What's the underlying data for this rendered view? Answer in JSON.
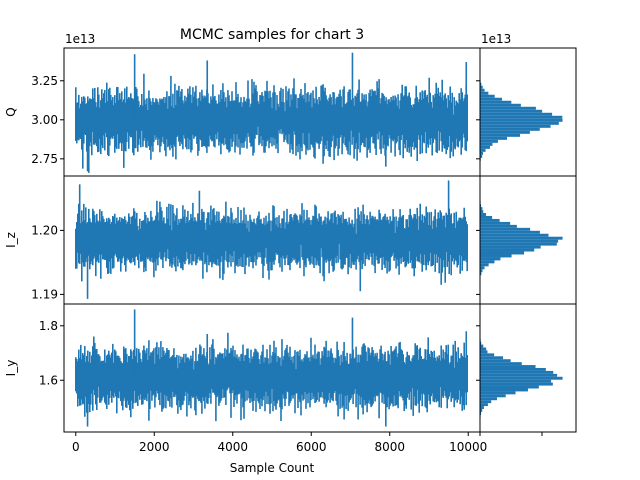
{
  "chart_data": {
    "type": "trace+histogram",
    "title": "MCMC samples for chart 3",
    "xlabel": "Sample Count",
    "x_ticks": [
      0,
      2000,
      4000,
      6000,
      8000,
      10000
    ],
    "x_tick_labels": [
      "0",
      "2000",
      "4000",
      "6000",
      "8000",
      "10000"
    ],
    "n_samples": 10000,
    "color": "#1f77b4",
    "rows": [
      {
        "name": "Q",
        "ylabel": "Q",
        "offset_text": "1e13",
        "hist_offset_text": "1e13",
        "ylim": [
          2.64,
          3.46
        ],
        "y_ticks": [
          2.75,
          3.0,
          3.25
        ],
        "y_tick_labels": [
          "2.75",
          "3.00",
          "3.25"
        ],
        "mean": 3.0,
        "sd": 0.08,
        "min": 2.66,
        "max": 3.43,
        "spikes": [
          [
            1500,
            3.42
          ],
          [
            7050,
            3.43
          ],
          [
            3350,
            3.38
          ],
          [
            7900,
            2.7
          ],
          [
            300,
            2.67
          ],
          [
            9950,
            3.37
          ]
        ]
      },
      {
        "name": "I_z",
        "ylabel": "I_z",
        "offset_text": "",
        "hist_offset_text": "",
        "ylim": [
          1.1885,
          1.2085
        ],
        "y_ticks": [
          1.19,
          1.2
        ],
        "y_tick_labels": [
          "1.19",
          "1.20"
        ],
        "mean": 1.1985,
        "sd": 0.0018,
        "min": 1.1893,
        "max": 1.2078,
        "spikes": [
          [
            100,
            1.2072
          ],
          [
            9500,
            1.2078
          ],
          [
            300,
            1.1893
          ],
          [
            3150,
            1.2062
          ],
          [
            7250,
            1.1905
          ]
        ]
      },
      {
        "name": "I_y",
        "ylabel": "I_y",
        "offset_text": "",
        "hist_offset_text": "",
        "ylim": [
          1.41,
          1.88
        ],
        "y_ticks": [
          1.6,
          1.8
        ],
        "y_tick_labels": [
          "1.6",
          "1.8"
        ],
        "mean": 1.61,
        "sd": 0.045,
        "min": 1.43,
        "max": 1.86,
        "spikes": [
          [
            1500,
            1.86
          ],
          [
            7050,
            1.83
          ],
          [
            3350,
            1.77
          ],
          [
            7900,
            1.43
          ],
          [
            300,
            1.43
          ],
          [
            9950,
            1.78
          ]
        ]
      }
    ]
  }
}
